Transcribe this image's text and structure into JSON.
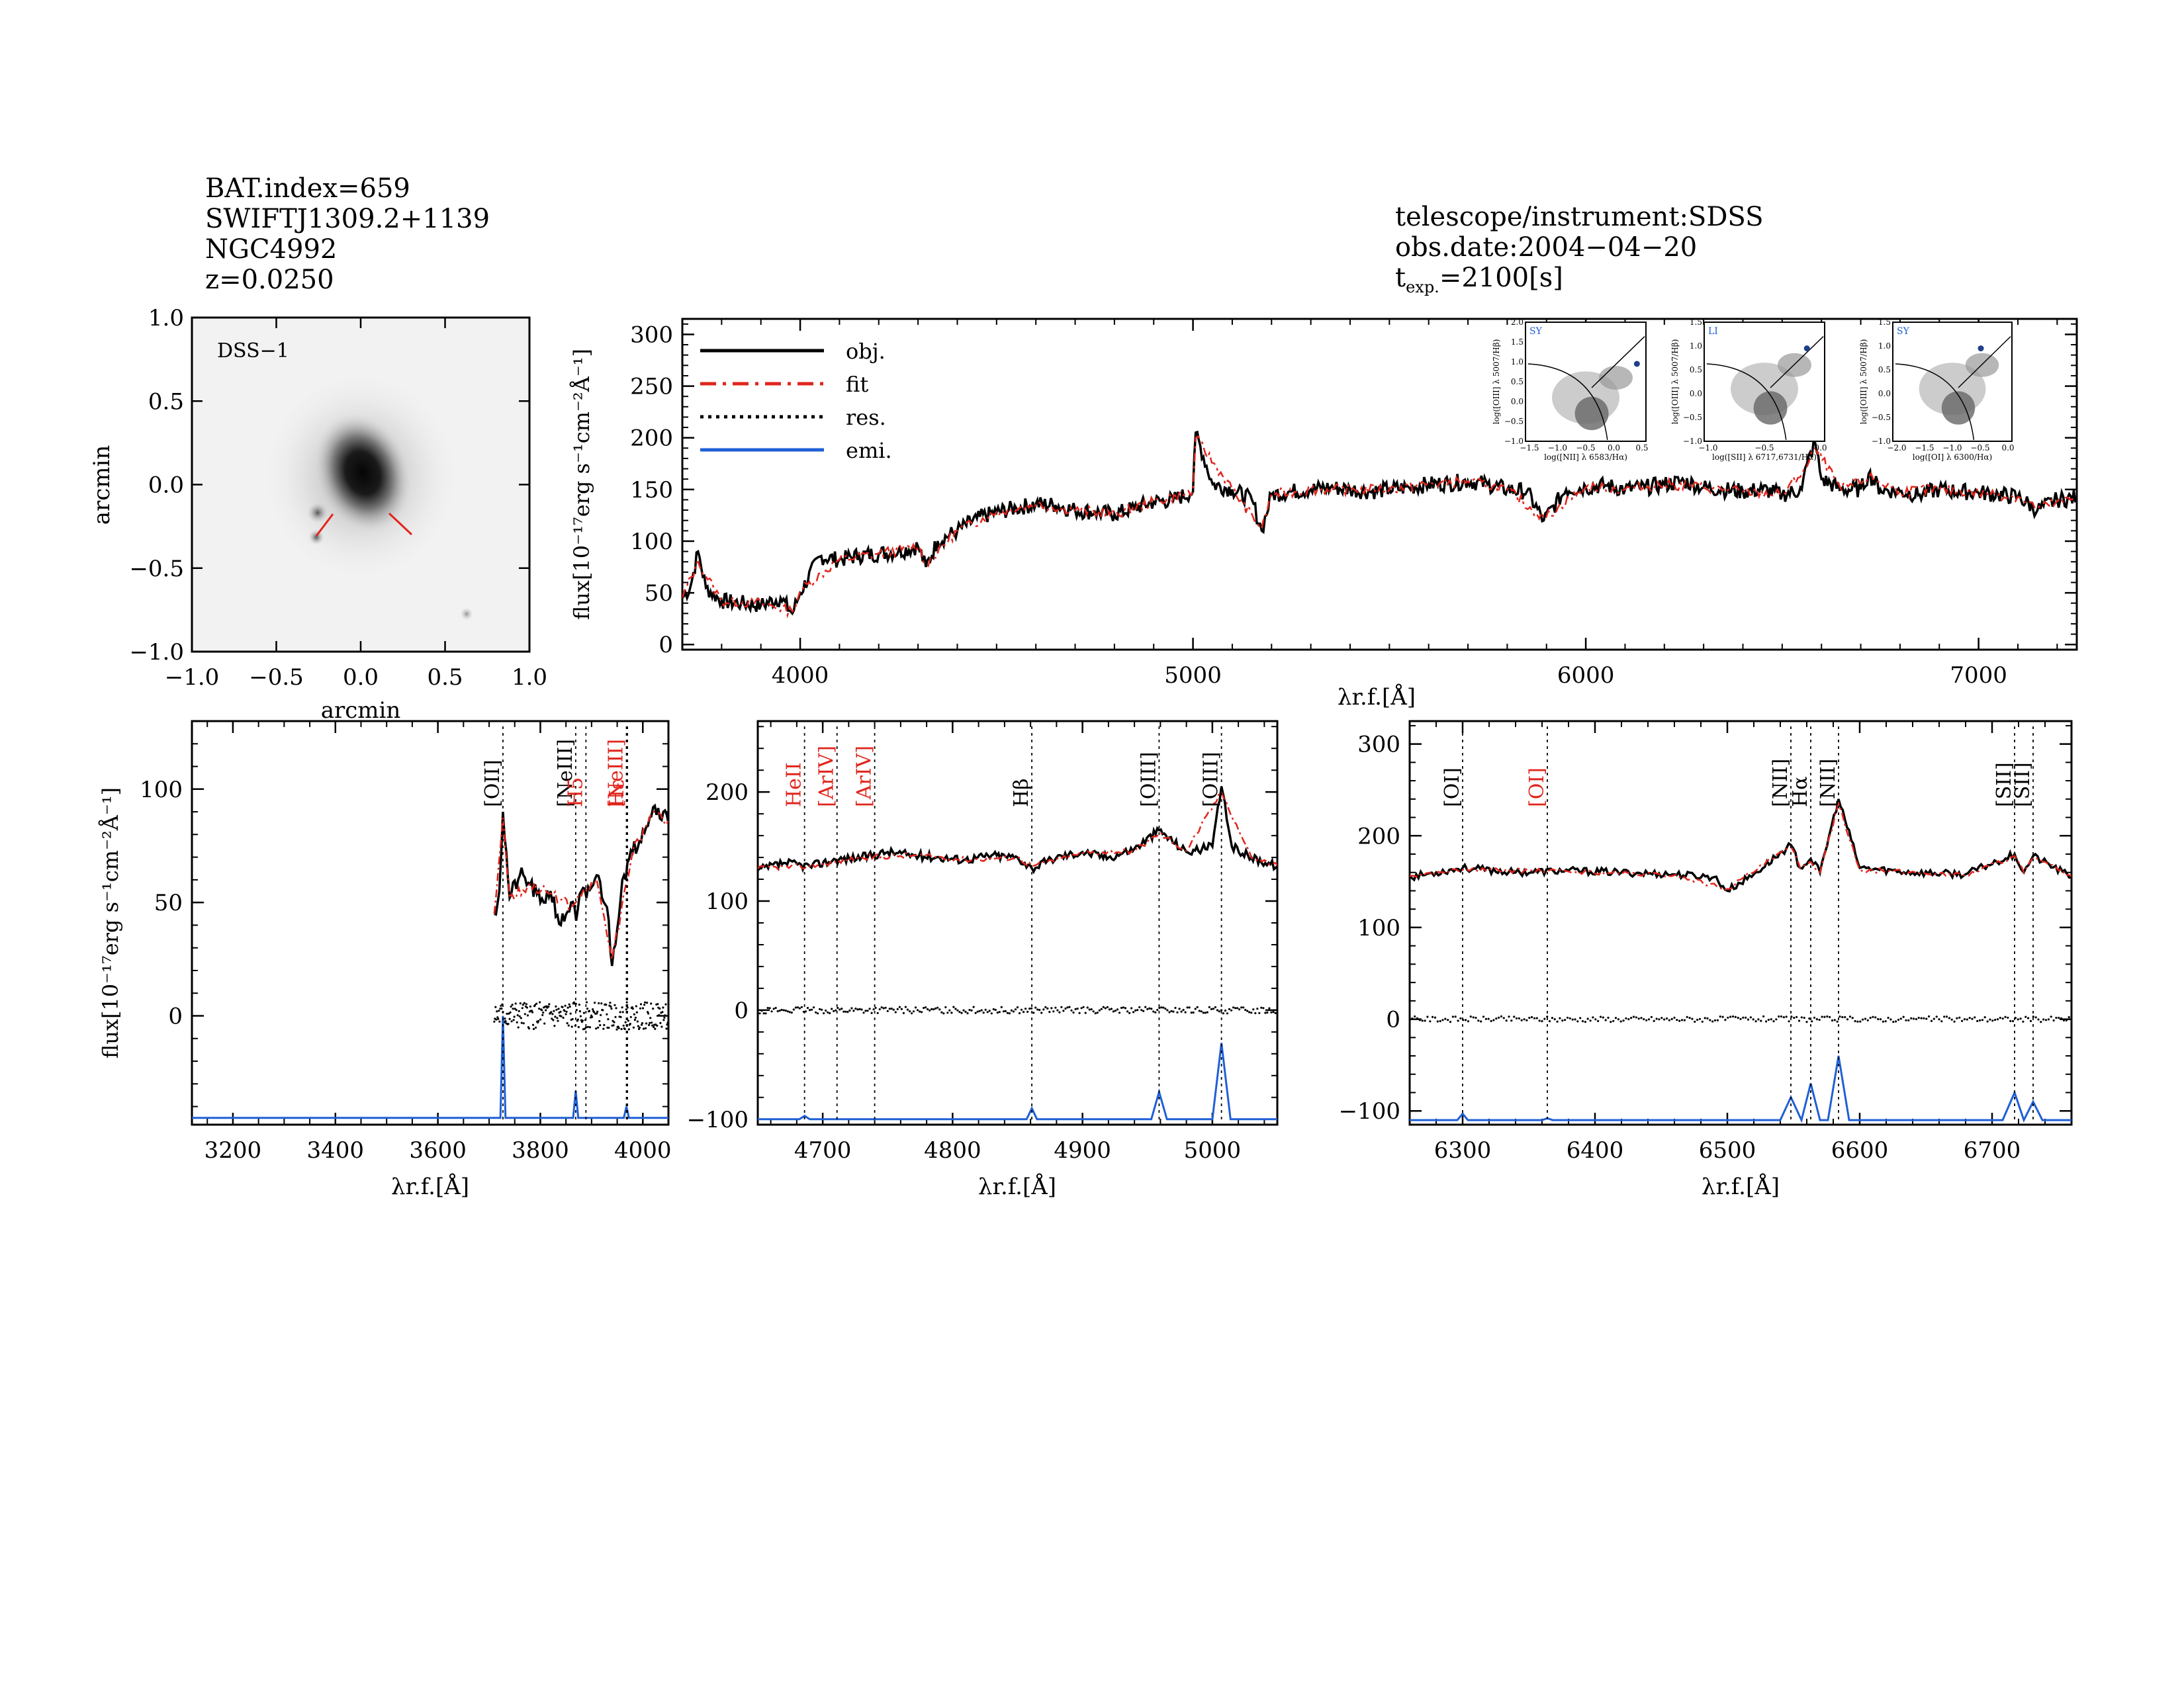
{
  "header_left": {
    "line1": "BAT.index=659",
    "line2": "SWIFTJ1309.2+1139",
    "line3": "NGC4992",
    "line4": "z=0.0250"
  },
  "header_right": {
    "line1": "telescope/instrument:SDSS",
    "line2": "obs.date:2004−04−20",
    "texp_prefix": "t",
    "texp_sub": "exp.",
    "texp_value": "=2100[s]"
  },
  "colors": {
    "obj": "#000000",
    "fit": "#e0251c",
    "res": "#000000",
    "emi": "#1f5fd6",
    "red_label": "#e0251c",
    "blue_label": "#1f5fd6"
  },
  "image_panel": {
    "label": "DSS−1",
    "xlabel": "arcmin",
    "ylabel": "arcmin",
    "xlim": [
      -1.0,
      1.0
    ],
    "ylim": [
      -1.0,
      1.0
    ],
    "xticks": [
      "−1.0",
      "−0.5",
      "0.0",
      "0.5",
      "1.0"
    ],
    "yticks": [
      "−1.0",
      "−0.5",
      "0.0",
      "0.5",
      "1.0"
    ]
  },
  "chart_data": [
    {
      "panel": "main-spectrum",
      "type": "line",
      "ylabel": "flux[10⁻¹⁷erg s⁻¹cm⁻²Å⁻¹]",
      "xlabel": "λr.f.[Å]",
      "xlim": [
        3700,
        7250
      ],
      "ylim": [
        -5,
        315
      ],
      "xticks": [
        4000,
        5000,
        6000,
        7000
      ],
      "yticks": [
        0,
        50,
        100,
        150,
        200,
        250,
        300
      ],
      "legend": {
        "placement": "top-left",
        "entries": [
          "obj.",
          "fit",
          "res.",
          "emi."
        ]
      },
      "series": [
        {
          "name": "obj.",
          "x": [
            3700,
            3720,
            3740,
            3760,
            3800,
            3850,
            3900,
            3950,
            3980,
            4000,
            4050,
            4100,
            4150,
            4200,
            4250,
            4300,
            4320,
            4350,
            4400,
            4450,
            4500,
            4550,
            4600,
            4650,
            4700,
            4750,
            4800,
            4850,
            4900,
            4950,
            5000,
            5007,
            5050,
            5100,
            5150,
            5175,
            5200,
            5250,
            5300,
            5350,
            5400,
            5450,
            5500,
            5550,
            5600,
            5650,
            5700,
            5750,
            5800,
            5850,
            5893,
            5950,
            6000,
            6050,
            6100,
            6150,
            6200,
            6250,
            6300,
            6350,
            6400,
            6450,
            6500,
            6550,
            6563,
            6584,
            6600,
            6650,
            6700,
            6720,
            6750,
            6800,
            6850,
            6900,
            6950,
            7000,
            7050,
            7100,
            7150,
            7200,
            7250
          ],
          "y": [
            45,
            55,
            90,
            55,
            42,
            40,
            38,
            45,
            30,
            50,
            85,
            82,
            86,
            88,
            90,
            95,
            75,
            100,
            110,
            122,
            128,
            132,
            136,
            135,
            130,
            128,
            126,
            132,
            138,
            140,
            148,
            205,
            155,
            150,
            140,
            110,
            145,
            148,
            150,
            152,
            150,
            148,
            150,
            152,
            155,
            156,
            158,
            155,
            150,
            148,
            120,
            150,
            152,
            154,
            150,
            152,
            155,
            158,
            152,
            150,
            148,
            150,
            145,
            150,
            175,
            195,
            160,
            150,
            150,
            165,
            150,
            148,
            145,
            150,
            148,
            147,
            145,
            143,
            130,
            140,
            142
          ]
        },
        {
          "name": "fit",
          "x": [
            3700,
            3740,
            3800,
            3900,
            3980,
            4000,
            4100,
            4200,
            4300,
            4320,
            4400,
            4500,
            4600,
            4700,
            4800,
            4900,
            5000,
            5007,
            5100,
            5175,
            5200,
            5300,
            5400,
            5500,
            5600,
            5700,
            5800,
            5893,
            6000,
            6100,
            6200,
            6300,
            6400,
            6500,
            6563,
            6584,
            6650,
            6720,
            6800,
            6900,
            7000,
            7100,
            7150,
            7250
          ],
          "y": [
            45,
            80,
            42,
            40,
            32,
            52,
            82,
            88,
            95,
            78,
            110,
            128,
            136,
            130,
            126,
            138,
            148,
            200,
            150,
            112,
            145,
            150,
            150,
            150,
            155,
            158,
            150,
            122,
            152,
            150,
            155,
            152,
            148,
            145,
            172,
            190,
            150,
            162,
            148,
            150,
            147,
            143,
            132,
            142
          ]
        }
      ],
      "insets": [
        {
          "tag": "SY",
          "xlabel": "log([NII] λ 6583/Hα)",
          "ylabel": "log([OIII] λ 5007/Hβ)",
          "xlim": [
            -1.5,
            0.5
          ],
          "ylim": [
            -1.0,
            2.0
          ],
          "xticks": [
            "−1.5",
            "−1.0",
            "−0.5",
            "0.0",
            "0.5"
          ],
          "yticks": [
            "−1.0",
            "−0.5",
            "0.0",
            "0.5",
            "1.0",
            "1.5",
            "2.0"
          ],
          "point": [
            0.35,
            0.95
          ]
        },
        {
          "tag": "LI",
          "xlabel": "log([SII] λ 6717,6731/Hα)",
          "ylabel": "log([OIII] λ 5007/Hβ)",
          "xlim": [
            -1.2,
            0.5
          ],
          "ylim": [
            -1.0,
            1.5
          ],
          "xticks": [
            "−1.0",
            "−0.5",
            "0.0"
          ],
          "yticks": [
            "−1.0",
            "−0.5",
            "0.0",
            "0.5",
            "1.0",
            "1.5"
          ],
          "point": [
            0.25,
            0.95
          ]
        },
        {
          "tag": "SY",
          "xlabel": "log([OI] λ 6300/Hα)",
          "ylabel": "log([OIII] λ 5007/Hβ)",
          "xlim": [
            -2.2,
            0.1
          ],
          "ylim": [
            -1.0,
            1.5
          ],
          "xticks": [
            "−2.0",
            "−1.5",
            "−1.0",
            "−0.5",
            "0.0"
          ],
          "yticks": [
            "−1.0",
            "−0.5",
            "0.0",
            "0.5",
            "1.0",
            "1.5"
          ],
          "point": [
            -0.5,
            0.95
          ]
        }
      ]
    },
    {
      "panel": "zoom-3700",
      "type": "line",
      "ylabel": "flux[10⁻¹⁷erg s⁻¹cm⁻²Å⁻¹]",
      "xlabel": "λr.f.[Å]",
      "xlim": [
        3120,
        4050
      ],
      "ylim": [
        -48,
        130
      ],
      "xticks": [
        3200,
        3400,
        3600,
        3800,
        4000
      ],
      "yticks": [
        0,
        50,
        100
      ],
      "lines": [
        {
          "label": "[OII]",
          "x": 3727,
          "color": "black"
        },
        {
          "label": "[NeIII]",
          "x": 3869,
          "color": "black"
        },
        {
          "label": "H5",
          "x": 3889,
          "color": "red"
        },
        {
          "label": "[NeIII]",
          "x": 3968,
          "color": "red"
        },
        {
          "label": "Hε",
          "x": 3970,
          "color": "red"
        }
      ],
      "series": [
        {
          "name": "obj.",
          "x": [
            3710,
            3720,
            3727,
            3740,
            3760,
            3780,
            3800,
            3820,
            3840,
            3860,
            3870,
            3880,
            3890,
            3910,
            3930,
            3940,
            3960,
            3980,
            4000,
            4020,
            4040,
            4050
          ],
          "y": [
            45,
            55,
            90,
            52,
            62,
            58,
            50,
            55,
            40,
            50,
            42,
            55,
            52,
            62,
            48,
            22,
            60,
            72,
            82,
            92,
            90,
            85
          ]
        },
        {
          "name": "fit",
          "x": [
            3710,
            3727,
            3740,
            3780,
            3820,
            3860,
            3880,
            3910,
            3940,
            3980,
            4020,
            4050
          ],
          "y": [
            45,
            88,
            52,
            58,
            54,
            48,
            53,
            60,
            25,
            72,
            90,
            86
          ]
        },
        {
          "name": "emi.",
          "x": [
            3120,
            3722,
            3727,
            3732,
            3864,
            3869,
            3874,
            3963,
            3968,
            3973,
            4050
          ],
          "y": [
            -45,
            -45,
            0,
            -45,
            -45,
            -33,
            -45,
            -45,
            -40,
            -45,
            -45
          ]
        }
      ],
      "residual_band": {
        "center": 0,
        "amplitude": 6,
        "xlim": [
          3710,
          4050
        ]
      }
    },
    {
      "panel": "zoom-4800",
      "type": "line",
      "xlabel": "λr.f.[Å]",
      "xlim": [
        4650,
        5050
      ],
      "ylim": [
        -105,
        265
      ],
      "xticks": [
        4700,
        4800,
        4900,
        5000
      ],
      "yticks": [
        -100,
        0,
        100,
        200
      ],
      "lines": [
        {
          "label": "HeII",
          "x": 4686,
          "color": "red"
        },
        {
          "label": "[ArIV]",
          "x": 4711,
          "color": "red"
        },
        {
          "label": "[ArIV]",
          "x": 4740,
          "color": "red"
        },
        {
          "label": "Hβ",
          "x": 4861,
          "color": "black"
        },
        {
          "label": "[OIII]",
          "x": 4959,
          "color": "black"
        },
        {
          "label": "[OIII]",
          "x": 5007,
          "color": "black"
        }
      ],
      "series": [
        {
          "name": "obj.",
          "x": [
            4650,
            4670,
            4690,
            4710,
            4730,
            4750,
            4770,
            4790,
            4810,
            4830,
            4850,
            4861,
            4880,
            4900,
            4920,
            4940,
            4959,
            4980,
            5000,
            5007,
            5015,
            5030,
            5050
          ],
          "y": [
            128,
            135,
            132,
            138,
            140,
            145,
            142,
            140,
            138,
            142,
            140,
            130,
            140,
            145,
            140,
            148,
            165,
            145,
            150,
            205,
            150,
            140,
            132
          ]
        },
        {
          "name": "fit",
          "x": [
            4650,
            4690,
            4730,
            4770,
            4810,
            4850,
            4861,
            4900,
            4940,
            4959,
            4980,
            5007,
            5030,
            5050
          ],
          "y": [
            130,
            132,
            140,
            142,
            138,
            140,
            132,
            144,
            146,
            162,
            146,
            200,
            140,
            133
          ]
        },
        {
          "name": "emi.",
          "x": [
            4650,
            4682,
            4686,
            4690,
            4857,
            4861,
            4865,
            4953,
            4959,
            4965,
            5000,
            5007,
            5014,
            5050
          ],
          "y": [
            -100,
            -100,
            -97,
            -100,
            -100,
            -90,
            -100,
            -100,
            -75,
            -100,
            -100,
            -30,
            -100,
            -100
          ]
        }
      ],
      "residual_band": {
        "center": 0,
        "amplitude": 3,
        "xlim": [
          4650,
          5050
        ]
      }
    },
    {
      "panel": "zoom-6500",
      "type": "line",
      "xlabel": "λr.f.[Å]",
      "xlim": [
        6260,
        6760
      ],
      "ylim": [
        -115,
        325
      ],
      "xticks": [
        6300,
        6400,
        6500,
        6600,
        6700
      ],
      "yticks": [
        -100,
        0,
        100,
        200,
        300
      ],
      "lines": [
        {
          "label": "[OI]",
          "x": 6300,
          "color": "black"
        },
        {
          "label": "[OI]",
          "x": 6364,
          "color": "red"
        },
        {
          "label": "[NII]",
          "x": 6548,
          "color": "black"
        },
        {
          "label": "Hα",
          "x": 6563,
          "color": "black"
        },
        {
          "label": "[NII]",
          "x": 6584,
          "color": "black"
        },
        {
          "label": "[SII]",
          "x": 6717,
          "color": "black"
        },
        {
          "label": "[SII]",
          "x": 6731,
          "color": "black"
        }
      ],
      "series": [
        {
          "name": "obj.",
          "x": [
            6260,
            6300,
            6340,
            6380,
            6420,
            6460,
            6490,
            6500,
            6520,
            6548,
            6555,
            6563,
            6570,
            6584,
            6600,
            6640,
            6680,
            6717,
            6724,
            6731,
            6760
          ],
          "y": [
            155,
            165,
            160,
            162,
            160,
            158,
            155,
            140,
            158,
            190,
            165,
            175,
            160,
            240,
            165,
            160,
            158,
            180,
            160,
            178,
            155
          ]
        },
        {
          "name": "fit",
          "x": [
            6260,
            6300,
            6380,
            6460,
            6500,
            6548,
            6555,
            6563,
            6570,
            6584,
            6600,
            6680,
            6717,
            6724,
            6731,
            6760
          ],
          "y": [
            156,
            163,
            161,
            157,
            142,
            188,
            165,
            172,
            160,
            235,
            163,
            157,
            178,
            160,
            176,
            156
          ]
        },
        {
          "name": "emi.",
          "x": [
            6260,
            6296,
            6300,
            6304,
            6360,
            6364,
            6368,
            6540,
            6548,
            6556,
            6563,
            6570,
            6576,
            6584,
            6592,
            6708,
            6717,
            6724,
            6731,
            6738,
            6760
          ],
          "y": [
            -110,
            -110,
            -103,
            -110,
            -110,
            -108,
            -110,
            -110,
            -85,
            -110,
            -70,
            -110,
            -110,
            -40,
            -110,
            -110,
            -80,
            -110,
            -90,
            -110,
            -110
          ]
        }
      ],
      "residual_band": {
        "center": 0,
        "amplitude": 3,
        "xlim": [
          6260,
          6760
        ]
      }
    }
  ]
}
